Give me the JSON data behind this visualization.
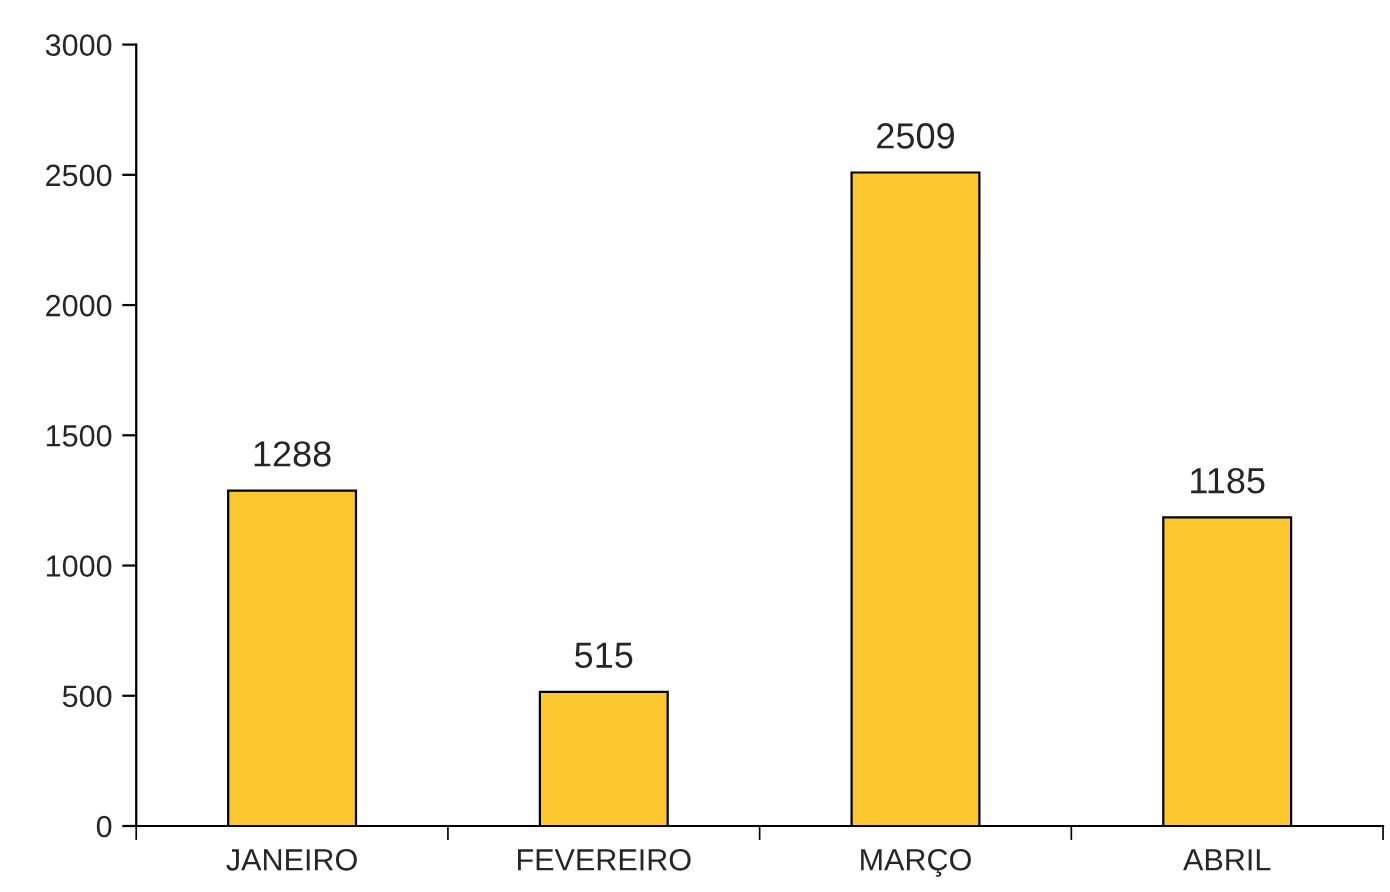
{
  "chart_data": {
    "type": "bar",
    "categories": [
      "JANEIRO",
      "FEVEREIRO",
      "MARÇO",
      "ABRIL"
    ],
    "values": [
      1288,
      515,
      2509,
      1185
    ],
    "color": "#fdc82f",
    "ylim": [
      0,
      3000
    ],
    "yticks": [
      0,
      500,
      1000,
      1500,
      2000,
      2500,
      3000
    ],
    "data_labels": true,
    "grid": false,
    "legend": false
  }
}
